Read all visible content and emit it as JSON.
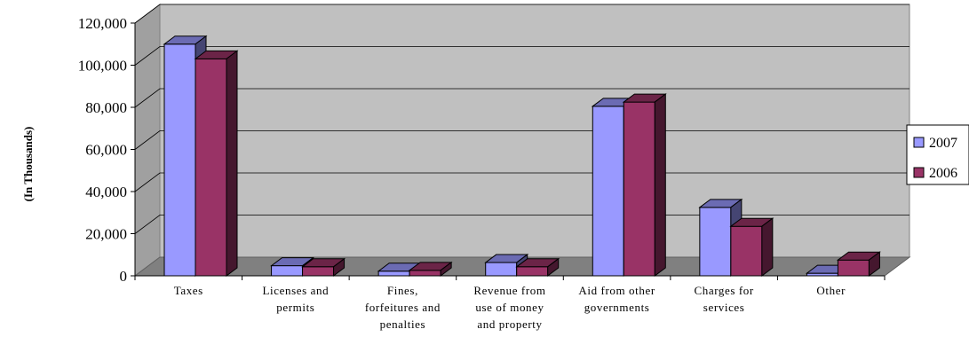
{
  "chart_data": {
    "type": "bar",
    "title": "",
    "xlabel": "",
    "ylabel": "(In Thousands)",
    "ylim": [
      0,
      120000
    ],
    "yticks": [
      0,
      20000,
      40000,
      60000,
      80000,
      100000,
      120000
    ],
    "ytick_labels": [
      "0",
      "20,000",
      "40,000",
      "60,000",
      "80,000",
      "100,000",
      "120,000"
    ],
    "grid": true,
    "legend_position": "right",
    "three_d": true,
    "categories": [
      [
        "Taxes"
      ],
      [
        "Licenses and",
        "permits"
      ],
      [
        "Fines,",
        "forfeitures and",
        "penalties"
      ],
      [
        "Revenue from",
        "use of money",
        "and property"
      ],
      [
        "Aid from other",
        "governments"
      ],
      [
        "Charges for",
        "services"
      ],
      [
        "Other"
      ]
    ],
    "series": [
      {
        "name": "2007",
        "color": "#9999ff",
        "values": [
          110000,
          4800,
          2200,
          6300,
          80500,
          32500,
          1200
        ]
      },
      {
        "name": "2006",
        "color": "#993366",
        "values": [
          103000,
          4300,
          2600,
          4300,
          82500,
          23500,
          7500
        ]
      }
    ]
  }
}
